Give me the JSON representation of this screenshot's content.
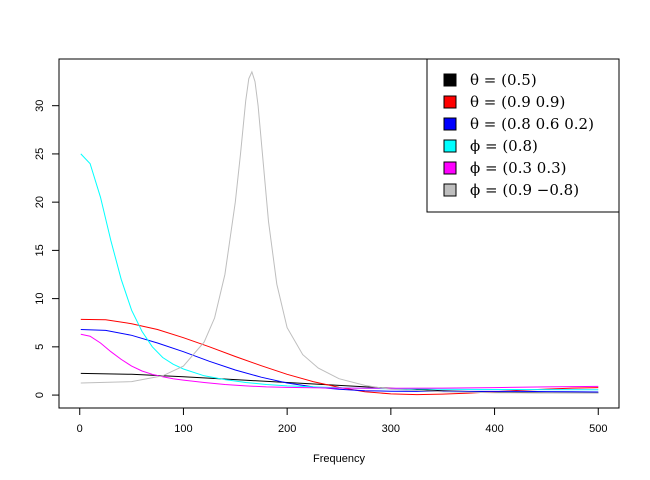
{
  "chart_data": {
    "type": "line",
    "title": "",
    "xlabel": "Frequency",
    "ylabel": "",
    "xlim": [
      0,
      500
    ],
    "ylim": [
      0,
      33.5
    ],
    "xticks": [
      0,
      100,
      200,
      300,
      400,
      500
    ],
    "yticks": [
      0,
      5,
      10,
      15,
      20,
      25,
      30
    ],
    "grid": false,
    "legend_position": "top-right",
    "series": [
      {
        "name": "θ = (0.5)",
        "color": "#000000",
        "x": [
          1,
          50,
          100,
          150,
          200,
          250,
          300,
          350,
          400,
          450,
          500
        ],
        "y": [
          2.25,
          2.15,
          1.9,
          1.6,
          1.3,
          1.0,
          0.7,
          0.45,
          0.3,
          0.25,
          0.25
        ]
      },
      {
        "name": "θ = (0.9  0.9)",
        "color": "#ff0000",
        "x": [
          1,
          25,
          50,
          75,
          100,
          125,
          150,
          175,
          200,
          225,
          250,
          275,
          300,
          325,
          350,
          375,
          400,
          425,
          450,
          475,
          500
        ],
        "y": [
          7.85,
          7.8,
          7.4,
          6.8,
          5.95,
          5.0,
          4.0,
          3.05,
          2.15,
          1.4,
          0.8,
          0.35,
          0.12,
          0.05,
          0.1,
          0.2,
          0.35,
          0.5,
          0.62,
          0.72,
          0.78
        ]
      },
      {
        "name": "θ = (0.8  0.6  0.2)",
        "color": "#0000ff",
        "x": [
          1,
          25,
          50,
          75,
          100,
          125,
          150,
          175,
          200,
          225,
          250,
          275,
          300,
          325,
          350,
          375,
          400,
          425,
          450,
          475,
          500
        ],
        "y": [
          6.8,
          6.7,
          6.2,
          5.4,
          4.5,
          3.5,
          2.6,
          1.85,
          1.25,
          0.85,
          0.6,
          0.45,
          0.4,
          0.38,
          0.38,
          0.38,
          0.38,
          0.38,
          0.36,
          0.34,
          0.32
        ]
      },
      {
        "name": "ϕ = (0.8)",
        "color": "#00ffff",
        "x": [
          1,
          10,
          20,
          30,
          40,
          50,
          60,
          70,
          80,
          90,
          100,
          120,
          140,
          160,
          180,
          200,
          250,
          300,
          350,
          400,
          450,
          500
        ],
        "y": [
          25.0,
          24.0,
          20.5,
          16.0,
          12.0,
          8.8,
          6.6,
          5.0,
          3.9,
          3.2,
          2.7,
          2.0,
          1.6,
          1.3,
          1.1,
          0.95,
          0.75,
          0.65,
          0.6,
          0.58,
          0.57,
          0.56
        ]
      },
      {
        "name": "ϕ = (0.3  0.3)",
        "color": "#ff00ff",
        "x": [
          1,
          10,
          20,
          30,
          40,
          50,
          60,
          70,
          80,
          90,
          100,
          120,
          140,
          160,
          180,
          200,
          250,
          300,
          350,
          400,
          450,
          500
        ],
        "y": [
          6.3,
          6.1,
          5.4,
          4.5,
          3.7,
          3.0,
          2.5,
          2.15,
          1.9,
          1.7,
          1.55,
          1.3,
          1.1,
          0.95,
          0.85,
          0.8,
          0.72,
          0.7,
          0.72,
          0.78,
          0.85,
          0.9
        ]
      },
      {
        "name": "ϕ = (0.9  −0.8)",
        "color": "#bebebe",
        "x": [
          1,
          50,
          80,
          100,
          120,
          130,
          140,
          150,
          155,
          160,
          163,
          166,
          169,
          172,
          177,
          182,
          190,
          200,
          215,
          230,
          250,
          275,
          300,
          350,
          400,
          450,
          500
        ],
        "y": [
          1.25,
          1.4,
          2.0,
          3.0,
          5.5,
          8.0,
          12.5,
          20.0,
          25.0,
          30.5,
          32.8,
          33.5,
          32.5,
          30.0,
          24.0,
          18.0,
          11.5,
          7.0,
          4.2,
          2.8,
          1.7,
          1.0,
          0.6,
          0.35,
          0.25,
          0.22,
          0.2
        ]
      }
    ]
  }
}
